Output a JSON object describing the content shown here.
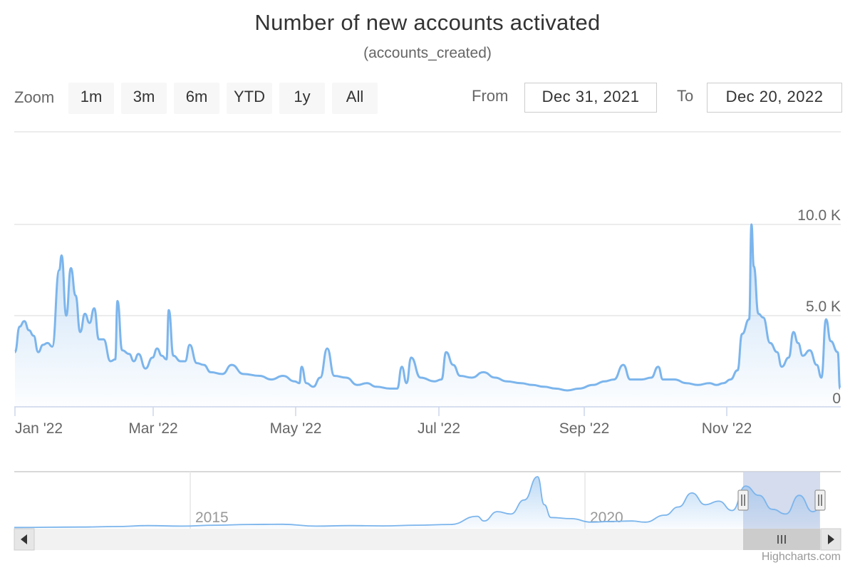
{
  "title": "Number of new accounts activated",
  "subtitle": "(accounts_created)",
  "range_selector": {
    "zoom_label": "Zoom",
    "buttons": [
      "1m",
      "3m",
      "6m",
      "YTD",
      "1y",
      "All"
    ],
    "from_label": "From",
    "from_value": "Dec 31, 2021",
    "to_label": "To",
    "to_value": "Dec 20, 2022"
  },
  "colors": {
    "series": "#7cb5ec",
    "grid": "#e6e6e6",
    "navigator_mask": "#ccd6eb"
  },
  "chart_data": {
    "type": "area",
    "title": "Number of new accounts activated",
    "subtitle": "(accounts_created)",
    "x_start": "2021-12-31",
    "x_end": "2022-12-20",
    "x_ticks": [
      "Jan '22",
      "Mar '22",
      "May '22",
      "Jul '22",
      "Sep '22",
      "Nov '22"
    ],
    "y_ticks": [
      "0",
      "5.0 K",
      "10.0 K"
    ],
    "ylim": [
      0,
      12000
    ],
    "grid": true,
    "series": [
      {
        "values": [
          [
            "2021-12-31",
            3000
          ],
          [
            "2022-01-02",
            4400
          ],
          [
            "2022-01-04",
            4700
          ],
          [
            "2022-01-06",
            4200
          ],
          [
            "2022-01-08",
            3900
          ],
          [
            "2022-01-10",
            3000
          ],
          [
            "2022-01-12",
            3400
          ],
          [
            "2022-01-14",
            3500
          ],
          [
            "2022-01-16",
            3300
          ],
          [
            "2022-01-19",
            7500
          ],
          [
            "2022-01-20",
            8300
          ],
          [
            "2022-01-22",
            5000
          ],
          [
            "2022-01-24",
            7600
          ],
          [
            "2022-01-26",
            6100
          ],
          [
            "2022-01-28",
            4100
          ],
          [
            "2022-01-30",
            5100
          ],
          [
            "2022-02-01",
            4600
          ],
          [
            "2022-02-03",
            5400
          ],
          [
            "2022-02-05",
            3700
          ],
          [
            "2022-02-07",
            3700
          ],
          [
            "2022-02-10",
            2500
          ],
          [
            "2022-02-12",
            2600
          ],
          [
            "2022-02-13",
            5800
          ],
          [
            "2022-02-15",
            3100
          ],
          [
            "2022-02-18",
            2900
          ],
          [
            "2022-02-20",
            2500
          ],
          [
            "2022-02-22",
            2900
          ],
          [
            "2022-02-25",
            2100
          ],
          [
            "2022-02-28",
            2700
          ],
          [
            "2022-03-02",
            3200
          ],
          [
            "2022-03-04",
            2800
          ],
          [
            "2022-03-06",
            2600
          ],
          [
            "2022-03-07",
            5300
          ],
          [
            "2022-03-09",
            2800
          ],
          [
            "2022-03-12",
            2500
          ],
          [
            "2022-03-14",
            2500
          ],
          [
            "2022-03-16",
            3400
          ],
          [
            "2022-03-19",
            2400
          ],
          [
            "2022-03-22",
            2300
          ],
          [
            "2022-03-25",
            1900
          ],
          [
            "2022-03-30",
            1800
          ],
          [
            "2022-04-03",
            2300
          ],
          [
            "2022-04-08",
            1800
          ],
          [
            "2022-04-15",
            1700
          ],
          [
            "2022-04-20",
            1500
          ],
          [
            "2022-04-25",
            1700
          ],
          [
            "2022-04-30",
            1400
          ],
          [
            "2022-05-02",
            1300
          ],
          [
            "2022-05-03",
            2200
          ],
          [
            "2022-05-05",
            1300
          ],
          [
            "2022-05-08",
            1100
          ],
          [
            "2022-05-11",
            1600
          ],
          [
            "2022-05-14",
            3200
          ],
          [
            "2022-05-17",
            1700
          ],
          [
            "2022-05-22",
            1600
          ],
          [
            "2022-05-27",
            1200
          ],
          [
            "2022-05-31",
            1300
          ],
          [
            "2022-06-04",
            1100
          ],
          [
            "2022-06-10",
            1000
          ],
          [
            "2022-06-13",
            1000
          ],
          [
            "2022-06-15",
            2200
          ],
          [
            "2022-06-17",
            1300
          ],
          [
            "2022-06-19",
            2700
          ],
          [
            "2022-06-23",
            1600
          ],
          [
            "2022-06-29",
            1400
          ],
          [
            "2022-07-02",
            1500
          ],
          [
            "2022-07-04",
            3000
          ],
          [
            "2022-07-07",
            2300
          ],
          [
            "2022-07-10",
            1700
          ],
          [
            "2022-07-15",
            1600
          ],
          [
            "2022-07-20",
            1900
          ],
          [
            "2022-07-25",
            1600
          ],
          [
            "2022-07-30",
            1400
          ],
          [
            "2022-08-05",
            1300
          ],
          [
            "2022-08-10",
            1200
          ],
          [
            "2022-08-15",
            1100
          ],
          [
            "2022-08-20",
            1000
          ],
          [
            "2022-08-25",
            900
          ],
          [
            "2022-08-30",
            1000
          ],
          [
            "2022-09-05",
            1200
          ],
          [
            "2022-09-10",
            1400
          ],
          [
            "2022-09-14",
            1500
          ],
          [
            "2022-09-18",
            2300
          ],
          [
            "2022-09-21",
            1500
          ],
          [
            "2022-09-26",
            1500
          ],
          [
            "2022-09-30",
            1600
          ],
          [
            "2022-10-03",
            2200
          ],
          [
            "2022-10-05",
            1500
          ],
          [
            "2022-10-10",
            1500
          ],
          [
            "2022-10-15",
            1300
          ],
          [
            "2022-10-20",
            1200
          ],
          [
            "2022-10-25",
            1300
          ],
          [
            "2022-10-28",
            1200
          ],
          [
            "2022-10-31",
            1300
          ],
          [
            "2022-11-03",
            1500
          ],
          [
            "2022-11-06",
            2000
          ],
          [
            "2022-11-08",
            4000
          ],
          [
            "2022-11-11",
            4800
          ],
          [
            "2022-11-12",
            10000
          ],
          [
            "2022-11-13",
            7700
          ],
          [
            "2022-11-15",
            5100
          ],
          [
            "2022-11-17",
            4900
          ],
          [
            "2022-11-20",
            3500
          ],
          [
            "2022-11-23",
            3000
          ],
          [
            "2022-11-25",
            2200
          ],
          [
            "2022-11-28",
            2700
          ],
          [
            "2022-11-30",
            4100
          ],
          [
            "2022-12-02",
            3500
          ],
          [
            "2022-12-04",
            2800
          ],
          [
            "2022-12-07",
            3100
          ],
          [
            "2022-12-10",
            2300
          ],
          [
            "2022-12-12",
            1600
          ],
          [
            "2022-12-14",
            4800
          ],
          [
            "2022-12-16",
            3600
          ],
          [
            "2022-12-19",
            3000
          ],
          [
            "2022-12-20",
            1000
          ]
        ]
      }
    ],
    "navigator": {
      "type": "area",
      "x_labels": [
        "2015",
        "2020"
      ],
      "values": [
        [
          2011.0,
          0.2
        ],
        [
          2012.0,
          0.4
        ],
        [
          2012.5,
          0.6
        ],
        [
          2013.0,
          1.0
        ],
        [
          2013.5,
          0.8
        ],
        [
          2014.0,
          1.2
        ],
        [
          2014.5,
          1.5
        ],
        [
          2015.0,
          1.6
        ],
        [
          2015.5,
          0.8
        ],
        [
          2016.0,
          1.0
        ],
        [
          2016.5,
          0.9
        ],
        [
          2017.0,
          1.2
        ],
        [
          2017.5,
          1.5
        ],
        [
          2017.9,
          5.0
        ],
        [
          2018.0,
          3.0
        ],
        [
          2018.2,
          7.0
        ],
        [
          2018.4,
          6.0
        ],
        [
          2018.6,
          12.0
        ],
        [
          2018.8,
          22.0
        ],
        [
          2018.9,
          10.0
        ],
        [
          2019.0,
          4.5
        ],
        [
          2019.3,
          4.0
        ],
        [
          2019.6,
          2.5
        ],
        [
          2019.9,
          2.8
        ],
        [
          2020.2,
          3.0
        ],
        [
          2020.4,
          2.5
        ],
        [
          2020.7,
          5.5
        ],
        [
          2020.9,
          9.0
        ],
        [
          2021.1,
          15.0
        ],
        [
          2021.3,
          10.0
        ],
        [
          2021.5,
          11.5
        ],
        [
          2021.7,
          7.5
        ],
        [
          2021.9,
          18.0
        ],
        [
          2022.1,
          14.0
        ],
        [
          2022.3,
          8.0
        ],
        [
          2022.5,
          6.0
        ],
        [
          2022.7,
          14.0
        ],
        [
          2022.9,
          7.0
        ],
        [
          2023.0,
          8.0
        ]
      ],
      "selected_range": [
        "Dec 31, 2021",
        "Dec 20, 2022"
      ]
    }
  },
  "credits": "Highcharts.com"
}
